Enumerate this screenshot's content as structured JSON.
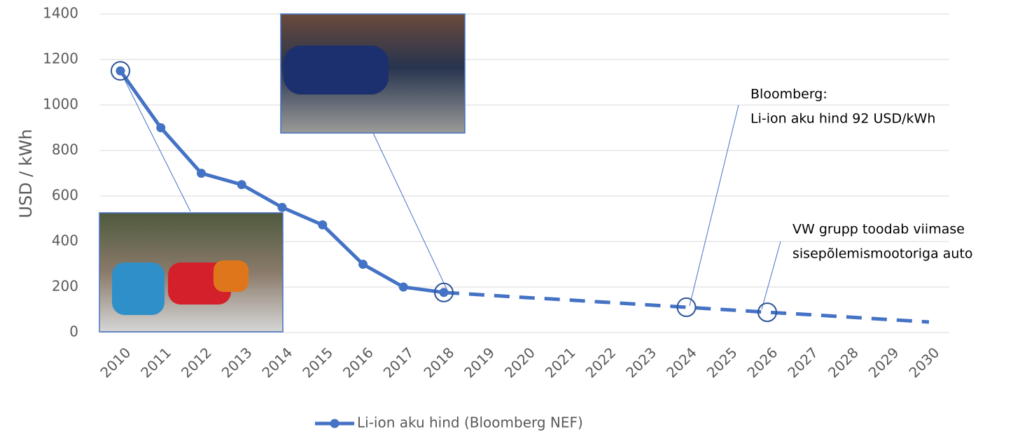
{
  "chart_data": {
    "type": "line",
    "y_label": "USD / kWh",
    "categories": [
      "2010",
      "2011",
      "2012",
      "2013",
      "2014",
      "2015",
      "2016",
      "2017",
      "2018",
      "2019",
      "2020",
      "2021",
      "2022",
      "2023",
      "2024",
      "2025",
      "2026",
      "2027",
      "2028",
      "2029",
      "2030"
    ],
    "series": [
      {
        "name": "Li-ion aku hind (Bloomberg NEF)",
        "color": "#4472c4",
        "values": [
          1150,
          900,
          700,
          650,
          550,
          473,
          300,
          200,
          176,
          null,
          null,
          null,
          null,
          null,
          null,
          null,
          null,
          null,
          null,
          null,
          null
        ],
        "projected_values": [
          null,
          null,
          null,
          null,
          null,
          null,
          null,
          null,
          176,
          165,
          154,
          144,
          133,
          122,
          111,
          100,
          89,
          79,
          68,
          57,
          46
        ]
      }
    ],
    "ylim": [
      0,
      1400
    ],
    "yticks": [
      0,
      200,
      400,
      600,
      800,
      1000,
      1200,
      1400
    ],
    "grid": true,
    "annotations": [
      {
        "lines": [
          "Bloomberg:",
          "Li-ion aku hind 92 USD/kWh"
        ]
      },
      {
        "lines": [
          "VW grupp toodab viimase",
          "sisepõlemismootoriga auto"
        ]
      }
    ]
  }
}
